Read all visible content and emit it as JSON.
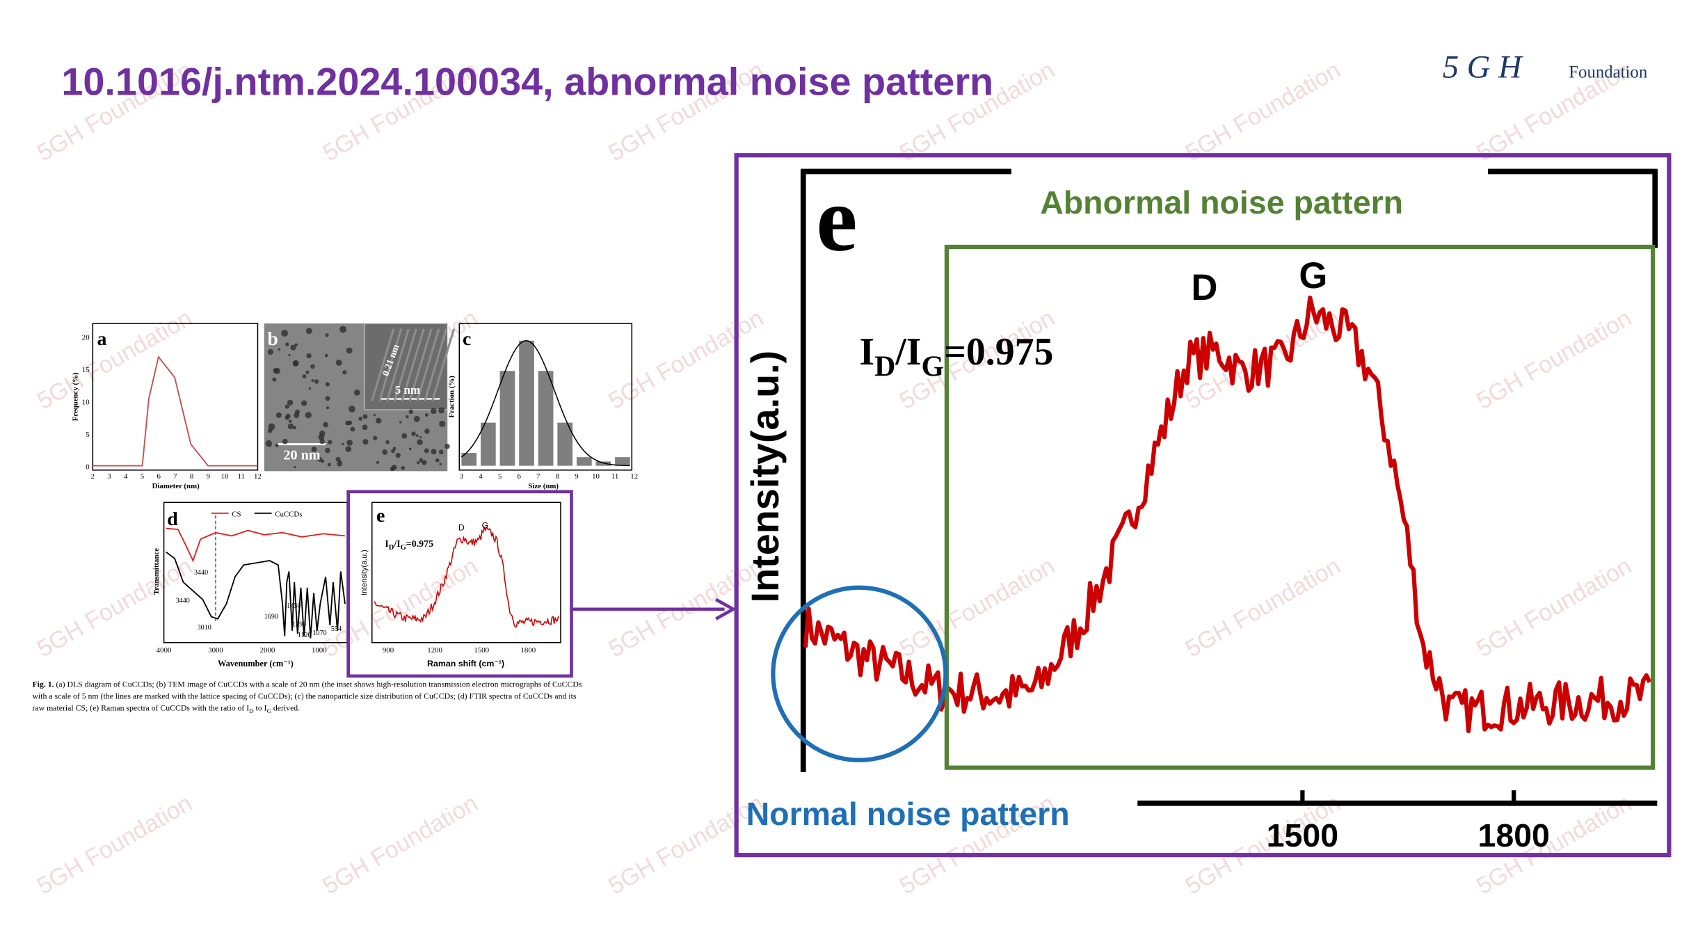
{
  "header": {
    "title": "10.1016/j.ntm.2024.100034, abnormal noise pattern",
    "logo_mark": "5 G H",
    "logo_text": "Foundation"
  },
  "watermark": "5GH Foundation",
  "figure": {
    "a": {
      "label": "a",
      "xlabel": "Diameter (nm)",
      "ylabel": "Frequency (%)",
      "xticks": [
        "2",
        "3",
        "4",
        "5",
        "6",
        "7",
        "8",
        "9",
        "10",
        "11",
        "12"
      ],
      "yticks": [
        "0",
        "5",
        "10",
        "15",
        "20"
      ]
    },
    "b": {
      "label": "b",
      "scale_main": "20 nm",
      "scale_inset": "5 nm",
      "spacing": "0.21 nm"
    },
    "c": {
      "label": "c",
      "xlabel": "Size (nm)",
      "ylabel": "Fraction (%)",
      "xticks": [
        "3",
        "4",
        "5",
        "6",
        "7",
        "8",
        "9",
        "10",
        "11",
        "12"
      ]
    },
    "d": {
      "label": "d",
      "xlabel": "Wavenumber (cm⁻¹)",
      "ylabel": "Transmittance",
      "legend": [
        "CS",
        "CuCCDs"
      ],
      "xticks": [
        "4000",
        "3000",
        "2000",
        "1000"
      ],
      "annotations": [
        "3440",
        "3440",
        "3010",
        "1690",
        "1430",
        "1290",
        "1120",
        "1070",
        "554"
      ]
    },
    "e": {
      "label": "e",
      "xlabel": "Raman shift (cm⁻¹)",
      "ylabel": "Intensity(a.u.)",
      "xticks": [
        "900",
        "1200",
        "1500",
        "1800"
      ],
      "peaks": [
        "D",
        "G"
      ],
      "ratio": [
        {
          "t": "I"
        },
        {
          "t": "D",
          "sub": true
        },
        {
          "t": "/I"
        },
        {
          "t": "G",
          "sub": true
        },
        {
          "t": "=0.975"
        }
      ]
    },
    "caption": {
      "label": "Fig. 1.",
      "line1": "  (a) DLS diagram of CuCCDs; (b) TEM image of CuCCDs with a scale of 20 nm (the inset shows high-resolution transmission electron micrographs of CuCCDs",
      "line2": "with a scale of 5 nm (the lines are marked with the lattice spacing of CuCCDs); (c) the nanoparticle size distribution of CuCCDs; (d) FTIR spectra of CuCCDs and its",
      "line3": [
        {
          "t": "raw material CS; (e) Raman spectra of CuCCDs with the ratio of I"
        },
        {
          "t": "D",
          "sub": true
        },
        {
          "t": " to I"
        },
        {
          "t": "G",
          "sub": true
        },
        {
          "t": " derived."
        }
      ]
    }
  },
  "zoom": {
    "label": "e",
    "ylabel": "Intensity(a.u.)",
    "peaks": [
      "D",
      "G"
    ],
    "xticks": [
      "1500",
      "1800"
    ],
    "ratio": [
      {
        "t": "I"
      },
      {
        "t": "D",
        "sub": true
      },
      {
        "t": "/I"
      },
      {
        "t": "G",
        "sub": true
      },
      {
        "t": "=0.975"
      }
    ],
    "abnormal": "Abnormal noise pattern",
    "normal": "Normal noise pattern"
  }
}
